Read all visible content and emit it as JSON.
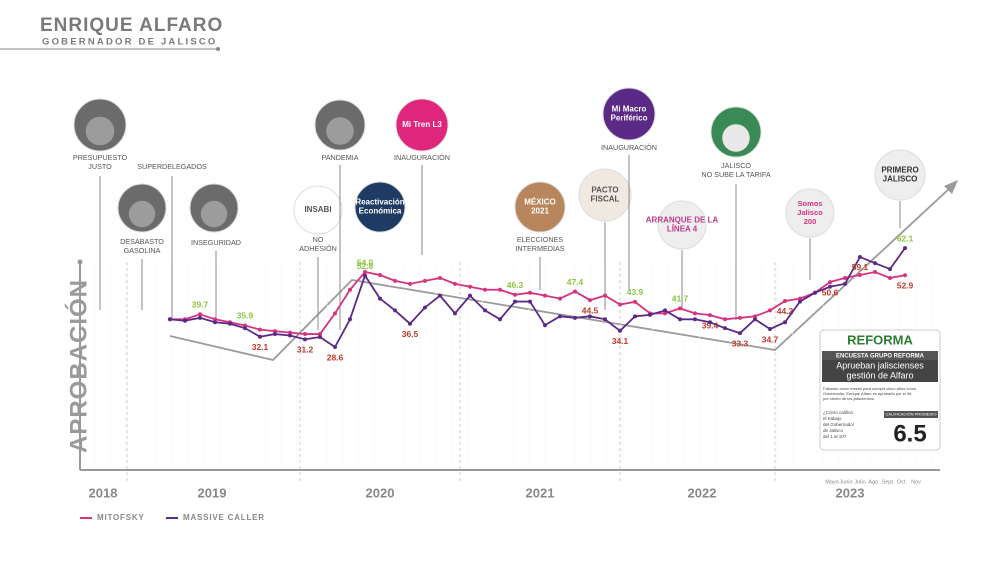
{
  "header": {
    "title": "ENRIQUE ALFARO",
    "subtitle": "GOBERNADOR DE JALISCO"
  },
  "chart_data": {
    "type": "line",
    "y_label": "APROBACIÓN",
    "categories": [
      null,
      null,
      null,
      null,
      null,
      null,
      null,
      null,
      null,
      null,
      null,
      null,
      null,
      null,
      null,
      null,
      null,
      null,
      null,
      null,
      null,
      null,
      null,
      null,
      null,
      null,
      null,
      null,
      null,
      null,
      null,
      null,
      null,
      null,
      null,
      null,
      null,
      null,
      null,
      null,
      null,
      null,
      null,
      null,
      null,
      null,
      null,
      null,
      null,
      null
    ],
    "ylim": [
      10,
      75
    ],
    "years": [
      "2018",
      "2019",
      "2020",
      "2021",
      "2022",
      "2023"
    ],
    "months": [
      "Mayo",
      "Junio",
      "Julio",
      "Ago.",
      "Sept.",
      "Oct.",
      "Nov"
    ],
    "series": [
      {
        "name": "MITOFSKY",
        "color": "#d6337f",
        "values": [
          38,
          38,
          39.7,
          38,
          37,
          35.9,
          34.5,
          34,
          33.5,
          33,
          33,
          40,
          48,
          54,
          53,
          51,
          50,
          51,
          52,
          50,
          49,
          48,
          48,
          46.3,
          47,
          46,
          45,
          47.4,
          44.5,
          46,
          43,
          43.9,
          40,
          40,
          41.7,
          40,
          39.4,
          38,
          38.5,
          39,
          41,
          44.2,
          45,
          47,
          50.6,
          52,
          53,
          54,
          52,
          52.9
        ],
        "value_labels": [
          null,
          null,
          "39.7",
          null,
          null,
          "35.9",
          null,
          null,
          null,
          null,
          null,
          null,
          null,
          "54.0",
          null,
          null,
          null,
          null,
          null,
          null,
          null,
          null,
          null,
          "46.3",
          null,
          null,
          null,
          "47.4",
          "44.5",
          null,
          null,
          "43.9",
          null,
          null,
          "41.7",
          null,
          "39.4",
          null,
          null,
          null,
          null,
          "44.2",
          null,
          null,
          "50.6",
          null,
          null,
          null,
          null,
          "52.9"
        ],
        "value_label_colors": [
          null,
          null,
          "#8cc63f",
          null,
          null,
          "#8cc63f",
          null,
          null,
          null,
          null,
          null,
          null,
          null,
          "#8cc63f",
          null,
          null,
          null,
          null,
          null,
          null,
          null,
          null,
          null,
          "#8cc63f",
          null,
          null,
          null,
          "#8cc63f",
          "#c0392b",
          null,
          null,
          "#8cc63f",
          null,
          null,
          "#8cc63f",
          null,
          "#c0392b",
          null,
          null,
          null,
          null,
          "#c0392b",
          null,
          null,
          "#c0392b",
          null,
          null,
          null,
          null,
          "#c0392b"
        ]
      },
      {
        "name": "MASSIVE CALLER",
        "color": "#5b2a86",
        "values": [
          38,
          37.5,
          38.5,
          37,
          36.5,
          35,
          32.1,
          33,
          32.5,
          31.2,
          32,
          28.6,
          38,
          52.8,
          45,
          41,
          36.5,
          42,
          46,
          40,
          46,
          41,
          38,
          44,
          44,
          36,
          39,
          38.5,
          39,
          38,
          34.1,
          39,
          39.5,
          41,
          38,
          38,
          37,
          35,
          33.3,
          38,
          34.7,
          37,
          44,
          47,
          49,
          50,
          59.1,
          57,
          55,
          62.1
        ],
        "value_labels": [
          null,
          null,
          null,
          null,
          null,
          null,
          "32.1",
          null,
          null,
          "31.2",
          null,
          "28.6",
          null,
          "52.8",
          null,
          null,
          "36.5",
          null,
          null,
          null,
          null,
          null,
          null,
          null,
          null,
          null,
          null,
          null,
          null,
          null,
          "34.1",
          null,
          null,
          null,
          null,
          null,
          null,
          null,
          "33.3",
          null,
          "34.7",
          null,
          null,
          null,
          null,
          null,
          "59.1",
          null,
          null,
          "62.1"
        ],
        "value_label_colors": [
          null,
          null,
          null,
          null,
          null,
          null,
          "#c0392b",
          null,
          null,
          "#c0392b",
          null,
          "#c0392b",
          null,
          "#8cc63f",
          null,
          null,
          "#c0392b",
          null,
          null,
          null,
          null,
          null,
          null,
          null,
          null,
          null,
          null,
          null,
          null,
          null,
          "#c0392b",
          null,
          null,
          null,
          null,
          null,
          null,
          null,
          "#c0392b",
          null,
          "#c0392b",
          null,
          null,
          null,
          null,
          null,
          "#c0392b",
          null,
          null,
          "#8cc63f"
        ]
      }
    ]
  },
  "events": [
    {
      "label": [
        "PRESUPUESTO",
        "JUSTO"
      ]
    },
    {
      "label": [
        "SUPERDELEGADOS"
      ]
    },
    {
      "label": [
        "DESABASTO",
        "GASOLINA"
      ]
    },
    {
      "label": [
        "INSEGURIDAD"
      ]
    },
    {
      "label": [
        "NO",
        "ADHESIÓN"
      ],
      "icon_text": [
        "INSABI"
      ]
    },
    {
      "label": [
        "PANDEMIA"
      ]
    },
    {
      "label": [
        "INAUGURACIÓN"
      ],
      "icon_text": [
        "Mi Tren L3"
      ]
    },
    {
      "icon_text": [
        "Reactivación",
        "Económica"
      ]
    },
    {
      "label": [
        "ELECCIONES",
        "INTERMEDIAS"
      ],
      "icon_text": [
        "MÉXICO",
        "2021"
      ]
    },
    {
      "icon_text": [
        "PACTO",
        "FISCAL"
      ]
    },
    {
      "label": [
        "INAUGURACIÓN"
      ],
      "icon_text": [
        "Mi Macro",
        "Periférico"
      ]
    },
    {
      "icon_text": [
        "ARRANQUE DE LA",
        "LÍNEA 4"
      ]
    },
    {
      "label": [
        "JALISCO",
        "NO SUBE LA TARIFA"
      ]
    },
    {
      "icon_text": [
        "Somos",
        "Jalisco",
        "200"
      ]
    },
    {
      "icon_text": [
        "PRIMERO",
        "JALISCO"
      ]
    }
  ],
  "reforma": {
    "brand": "REFORMA",
    "kicker": "ENCUESTA GRUPO REFORMA",
    "headline": [
      "Aprueban jaliscienses",
      "gestión de Alfaro"
    ],
    "body": [
      "Faltando cinco meses para cumplir cinco años como",
      "Gobernador, Enrique Alfaro es aprobado por el 56",
      "por ciento de los jaliscienses."
    ],
    "question": [
      "¿Cómo califica",
      "el trabajo",
      "del Gobernador",
      "de Jalisco",
      "del 1 al 10?"
    ],
    "score_label": "CALIFICACIÓN PROMEDIO",
    "score": "6.5"
  }
}
